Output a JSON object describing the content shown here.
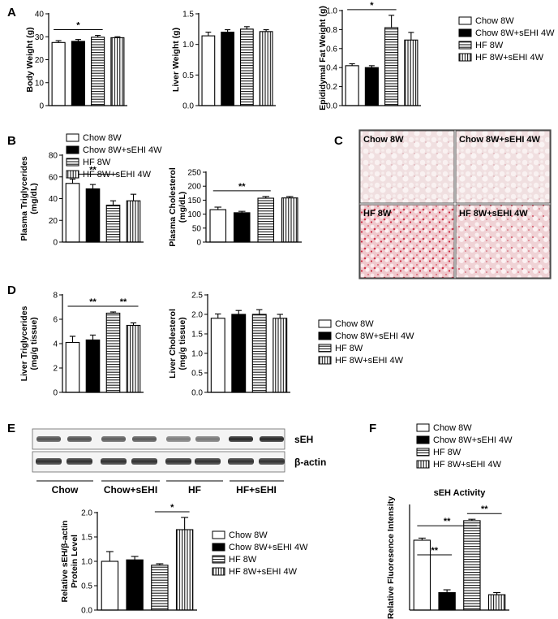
{
  "panel_letters": [
    "A",
    "B",
    "C",
    "D",
    "E",
    "F"
  ],
  "legend": {
    "entries": [
      "Chow 8W",
      "Chow 8W+sEHI 4W",
      "HF 8W",
      "HF 8W+sEHI 4W"
    ]
  },
  "series_style": [
    "white",
    "black",
    "horizontal-stripes",
    "vertical-stripes"
  ],
  "chart_data": [
    {
      "id": "body-weight",
      "type": "bar",
      "categories": [
        "Chow 8W",
        "Chow 8W+sEHI 4W",
        "HF 8W",
        "HF 8W+sEHI 4W"
      ],
      "values": [
        27.5,
        28.0,
        29.8,
        29.6
      ],
      "errors": [
        0.8,
        0.8,
        0.8,
        0.4
      ],
      "ylabel": "Body Weight (g)",
      "ylim": [
        0,
        40
      ],
      "yticks": [
        0,
        10,
        20,
        30,
        40
      ],
      "ytick_labels": [
        "0",
        "10",
        "20",
        "30",
        "40"
      ],
      "significance": [
        {
          "from": 0,
          "to": 2,
          "label": "*"
        }
      ]
    },
    {
      "id": "liver-weight",
      "type": "bar",
      "categories": [
        "Chow 8W",
        "Chow 8W+sEHI 4W",
        "HF 8W",
        "HF 8W+sEHI 4W"
      ],
      "values": [
        1.14,
        1.2,
        1.25,
        1.21
      ],
      "errors": [
        0.06,
        0.04,
        0.04,
        0.03
      ],
      "ylabel": "Liver Weight (g)",
      "ylim": [
        0,
        1.5
      ],
      "yticks": [
        0,
        0.5,
        1.0,
        1.5
      ],
      "ytick_labels": [
        "0.0",
        "0.5",
        "1.0",
        "1.5"
      ],
      "significance": []
    },
    {
      "id": "epididymal-fat",
      "type": "bar",
      "categories": [
        "Chow 8W",
        "Chow 8W+sEHI 4W",
        "HF 8W",
        "HF 8W+sEHI 4W"
      ],
      "values": [
        0.42,
        0.4,
        0.82,
        0.69
      ],
      "errors": [
        0.02,
        0.02,
        0.13,
        0.08
      ],
      "ylabel": "Epididymal Fat Weight (g)",
      "ylim": [
        0,
        1.0
      ],
      "yticks": [
        0,
        0.2,
        0.4,
        0.6,
        0.8,
        1.0
      ],
      "ytick_labels": [
        "0.0",
        "0.2",
        "0.4",
        "0.6",
        "0.8",
        "1.0"
      ],
      "significance": [
        {
          "from": 0,
          "to": 2,
          "label": "*"
        }
      ]
    },
    {
      "id": "plasma-tg",
      "type": "bar",
      "categories": [
        "Chow 8W",
        "Chow 8W+sEHI 4W",
        "HF 8W",
        "HF 8W+sEHI 4W"
      ],
      "values": [
        54,
        49,
        34,
        38
      ],
      "errors": [
        4,
        4,
        4,
        6
      ],
      "ylabel": "Plasma Triglycerides (mg/dL)",
      "ylim": [
        0,
        80
      ],
      "yticks": [
        0,
        20,
        40,
        60,
        80
      ],
      "ytick_labels": [
        "0",
        "20",
        "40",
        "60",
        "80"
      ],
      "significance": [
        {
          "from": 0,
          "to": 2,
          "label": "**"
        }
      ]
    },
    {
      "id": "plasma-chol",
      "type": "bar",
      "categories": [
        "Chow 8W",
        "Chow 8W+sEHI 4W",
        "HF 8W",
        "HF 8W+sEHI 4W"
      ],
      "values": [
        116,
        105,
        157,
        158
      ],
      "errors": [
        9,
        5,
        6,
        5
      ],
      "ylabel": "Plasma Cholesterol (mg/dL)",
      "ylim": [
        0,
        250
      ],
      "yticks": [
        0,
        50,
        100,
        150,
        200,
        250
      ],
      "ytick_labels": [
        "0",
        "50",
        "100",
        "150",
        "200",
        "250"
      ],
      "significance": [
        {
          "from": 0,
          "to": 2,
          "label": "**"
        }
      ]
    },
    {
      "id": "liver-tg",
      "type": "bar",
      "categories": [
        "Chow 8W",
        "Chow 8W+sEHI 4W",
        "HF 8W",
        "HF 8W+sEHI 4W"
      ],
      "values": [
        4.1,
        4.3,
        6.5,
        5.5
      ],
      "errors": [
        0.5,
        0.4,
        0.1,
        0.2
      ],
      "ylabel": "Liver Triglycerides (mg/g tissue)",
      "ylim": [
        0,
        8
      ],
      "yticks": [
        0,
        2,
        4,
        6,
        8
      ],
      "ytick_labels": [
        "0",
        "2",
        "4",
        "6",
        "8"
      ],
      "significance": [
        {
          "from": 0,
          "to": 2,
          "label": "**"
        },
        {
          "from": 2,
          "to": 3,
          "label": "**"
        }
      ]
    },
    {
      "id": "liver-chol",
      "type": "bar",
      "categories": [
        "Chow 8W",
        "Chow 8W+sEHI 4W",
        "HF 8W",
        "HF 8W+sEHI 4W"
      ],
      "values": [
        1.9,
        2.0,
        2.0,
        1.9
      ],
      "errors": [
        0.11,
        0.1,
        0.12,
        0.1
      ],
      "ylabel": "Liver Cholesterol (mg/g tissue)",
      "ylim": [
        0,
        2.5
      ],
      "yticks": [
        0,
        0.5,
        1.0,
        1.5,
        2.0,
        2.5
      ],
      "ytick_labels": [
        "0.0",
        "0.5",
        "1.0",
        "1.5",
        "2.0",
        "2.5"
      ],
      "significance": []
    },
    {
      "id": "seh-protein",
      "type": "bar",
      "categories": [
        "Chow 8W",
        "Chow 8W+sEHI 4W",
        "HF 8W",
        "HF 8W+sEHI 4W"
      ],
      "values": [
        1.0,
        1.03,
        0.92,
        1.65
      ],
      "errors": [
        0.2,
        0.07,
        0.03,
        0.25
      ],
      "ylabel": "Relative sEH/β-actin Protein Level",
      "ylim": [
        0,
        2.0
      ],
      "yticks": [
        0,
        0.5,
        1.0,
        1.5,
        2.0
      ],
      "ytick_labels": [
        "0.0",
        "0.5",
        "1.0",
        "1.5",
        "2.0"
      ],
      "significance": [
        {
          "from": 2,
          "to": 3,
          "label": "*"
        }
      ]
    },
    {
      "id": "seh-activity",
      "type": "bar",
      "categories": [
        "Chow 8W",
        "Chow 8W+sEHI 4W",
        "HF 8W",
        "HF 8W+sEHI 4W"
      ],
      "values": [
        1.0,
        0.25,
        1.28,
        0.22
      ],
      "errors": [
        0.03,
        0.04,
        0.02,
        0.03
      ],
      "title": "sEH Activity",
      "ylabel": "Relative Fluoresence Intensity",
      "ylim": [
        0,
        1.5
      ],
      "significance": [
        {
          "from": 0,
          "to": 1,
          "label": "**"
        },
        {
          "from": 0,
          "to": 2,
          "label": "**"
        },
        {
          "from": 2,
          "to": 3,
          "label": "**"
        }
      ]
    }
  ],
  "histology": {
    "labels": [
      "Chow 8W",
      "Chow 8W+sEHI 4W",
      "HF 8W",
      "HF 8W+sEHI 4W"
    ]
  },
  "blot": {
    "bands": [
      "sEH",
      "β-actin"
    ],
    "groups": [
      "Chow",
      "Chow+sEHI",
      "HF",
      "HF+sEHI"
    ]
  }
}
